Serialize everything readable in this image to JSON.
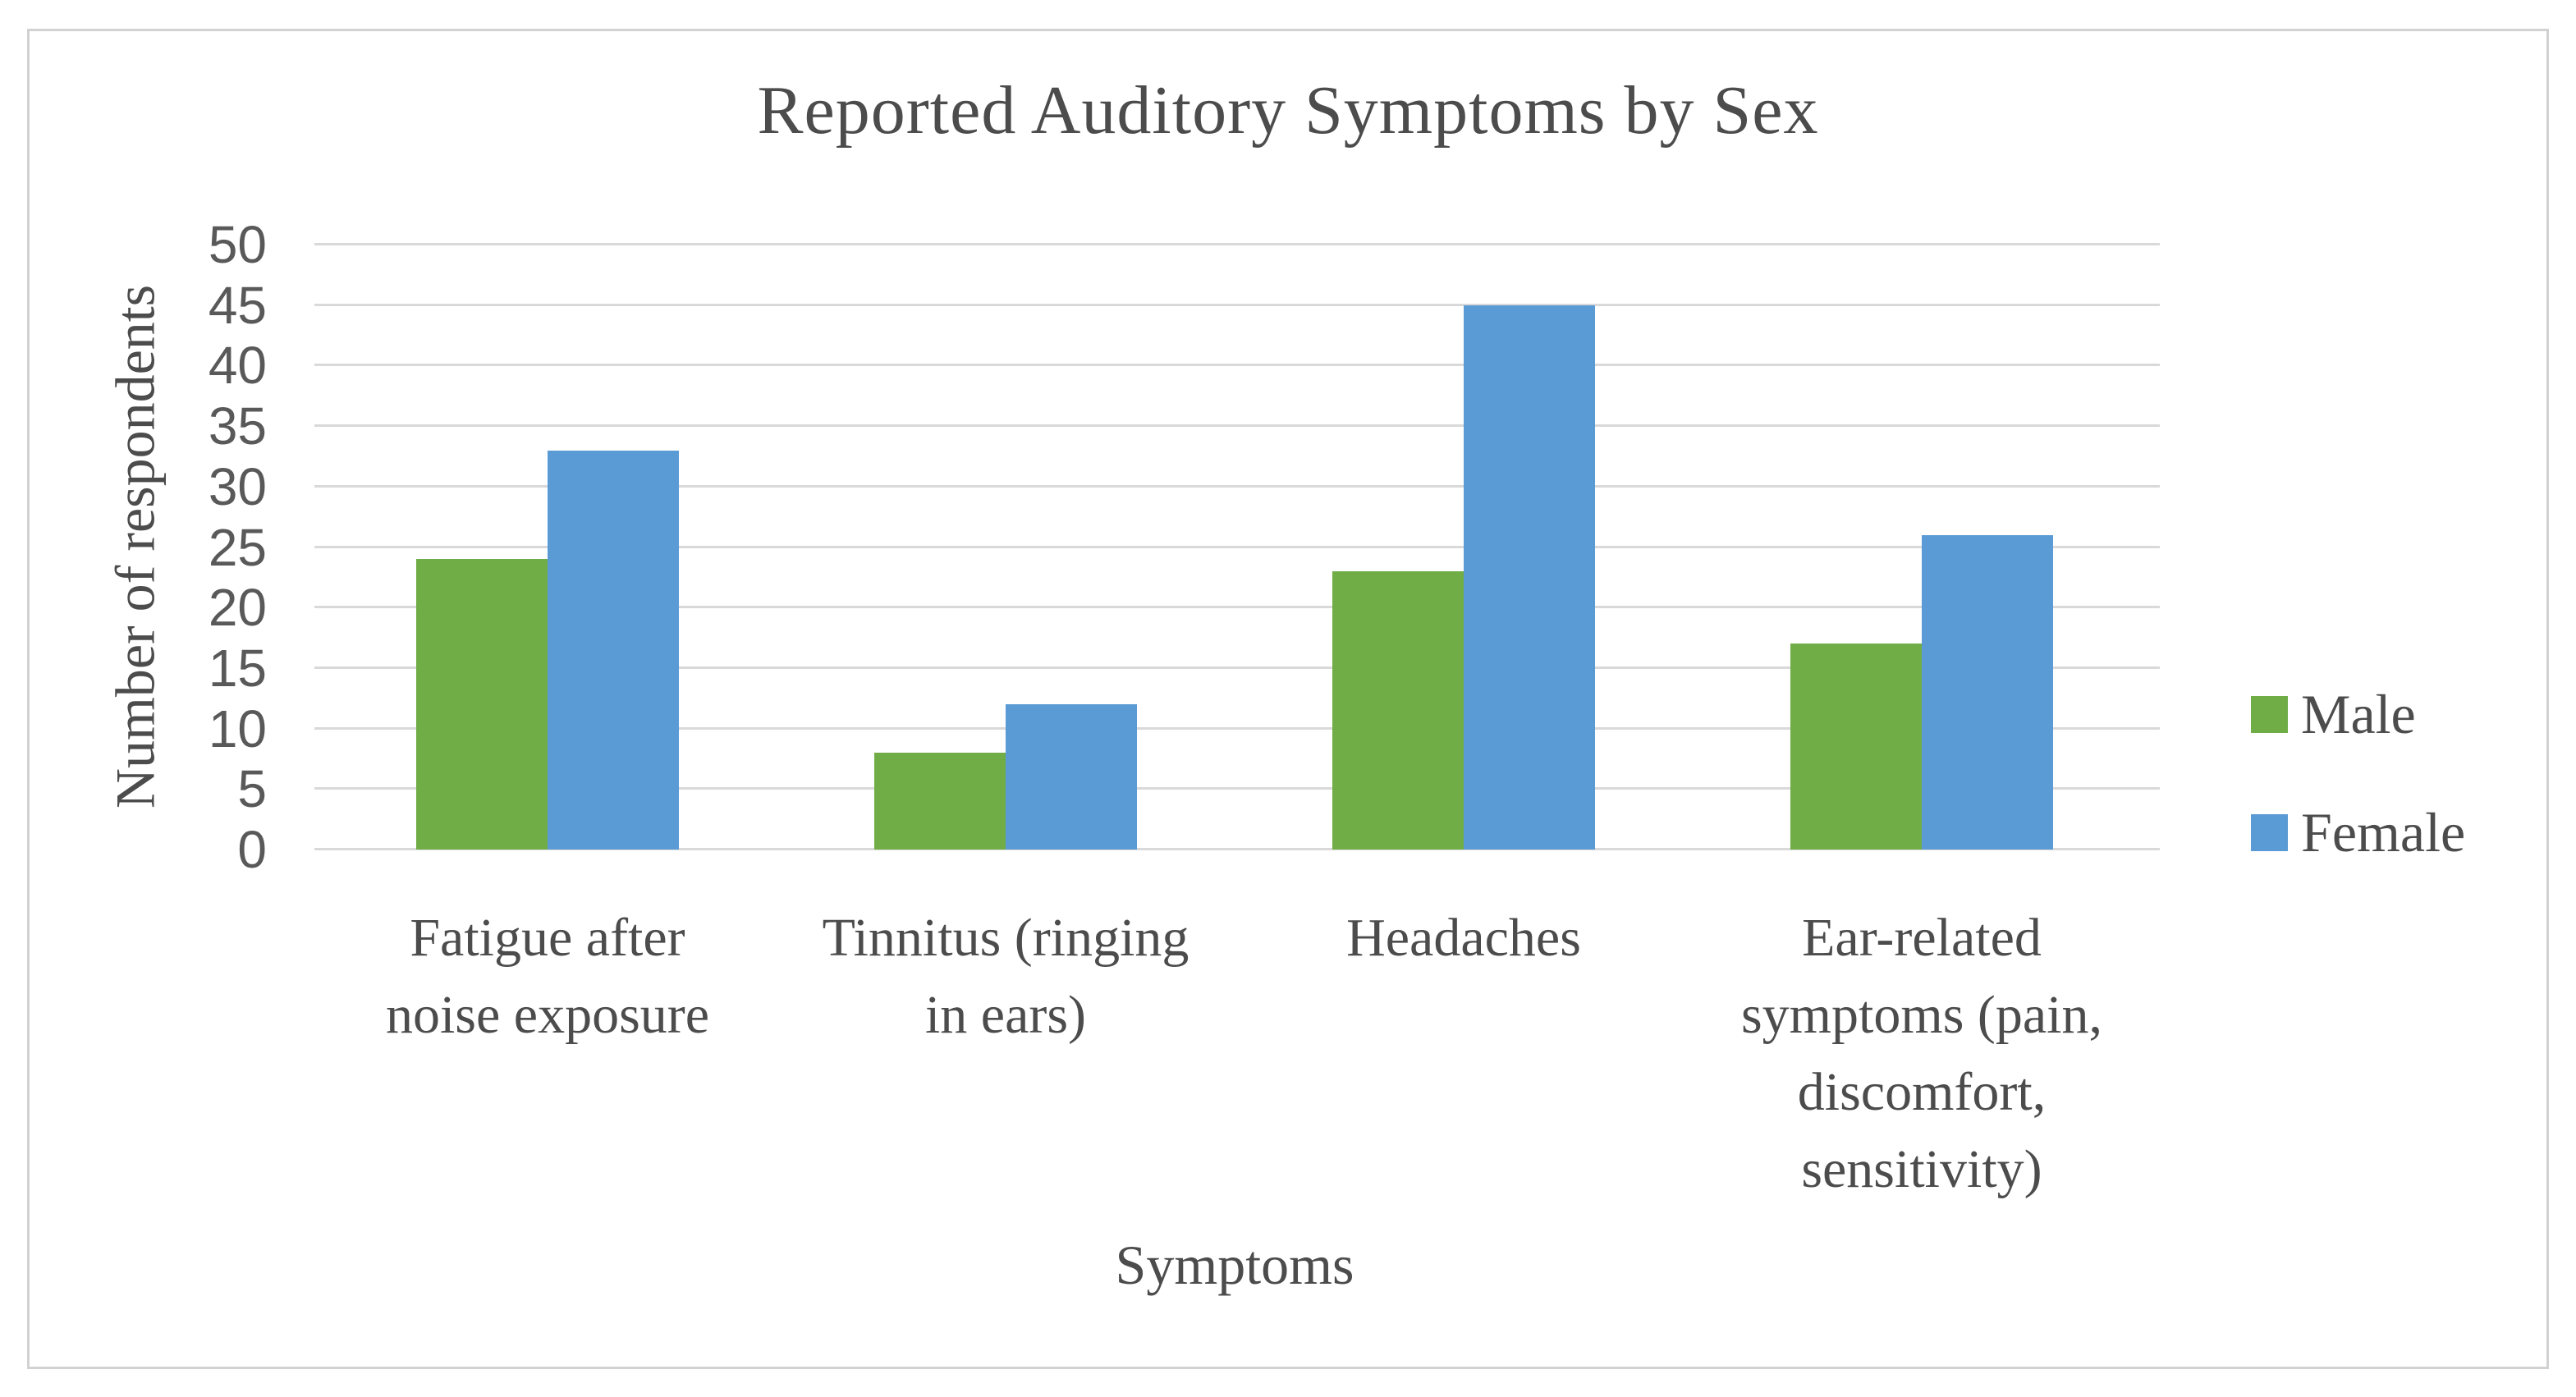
{
  "chart_data": {
    "type": "bar",
    "title": "Reported Auditory Symptoms by Sex",
    "xlabel": "Symptoms",
    "ylabel": "Number of respondents",
    "categories": [
      "Fatigue after noise exposure",
      "Tinnitus (ringing in ears)",
      "Headaches",
      "Ear-related symptoms (pain, discomfort, sensitivity)"
    ],
    "category_label_lines": [
      [
        "Fatigue after",
        "noise exposure"
      ],
      [
        "Tinnitus (ringing",
        "in ears)"
      ],
      [
        "Headaches"
      ],
      [
        "Ear-related",
        "symptoms (pain,",
        "discomfort,",
        "sensitivity)"
      ]
    ],
    "series": [
      {
        "name": "Male",
        "color": "#70AD47",
        "values": [
          24,
          8,
          23,
          17
        ]
      },
      {
        "name": "Female",
        "color": "#5B9BD5",
        "values": [
          33,
          12,
          45,
          26
        ]
      }
    ],
    "ylim": [
      0,
      50
    ],
    "yticks": [
      0,
      5,
      10,
      15,
      20,
      25,
      30,
      35,
      40,
      45,
      50
    ],
    "grid": "horizontal",
    "legend_position": "right"
  },
  "colors": {
    "male_series": "#70AD47",
    "female_series": "#5B9BD5",
    "gridline": "#D9D9D9",
    "frame_border": "#D2D2D2",
    "text": "#4C4C4C",
    "tick_text": "#595959",
    "background": "#FFFFFF"
  }
}
